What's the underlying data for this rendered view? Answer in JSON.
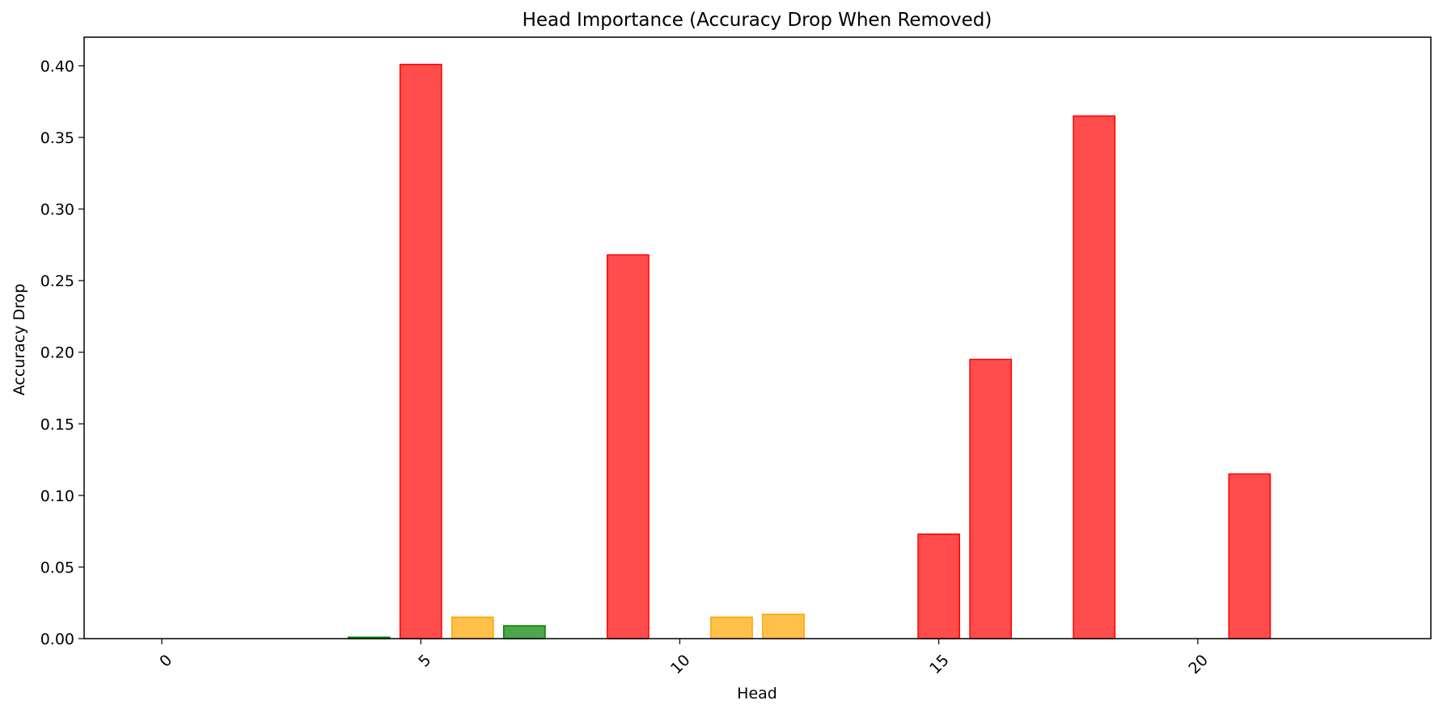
{
  "chart_data": {
    "type": "bar",
    "title": "Head Importance (Accuracy Drop When Removed)",
    "xlabel": "Head",
    "ylabel": "Accuracy Drop",
    "x": [
      0,
      1,
      2,
      3,
      4,
      5,
      6,
      7,
      8,
      9,
      10,
      11,
      12,
      13,
      14,
      15,
      16,
      17,
      18,
      19,
      20,
      21,
      22,
      23
    ],
    "values": [
      0.0,
      0.0,
      0.0,
      0.0,
      0.001,
      0.401,
      0.015,
      0.009,
      0.0,
      0.268,
      0.0,
      0.015,
      0.017,
      0.0,
      0.0,
      0.073,
      0.195,
      0.0,
      0.365,
      0.0,
      0.0,
      0.115,
      0.0,
      0.0
    ],
    "colors": [
      "#008000",
      "#008000",
      "#008000",
      "#008000",
      "#008000",
      "#ff0000",
      "#ffa500",
      "#008000",
      "#008000",
      "#ff0000",
      "#008000",
      "#ffa500",
      "#ffa500",
      "#008000",
      "#008000",
      "#ff0000",
      "#ff0000",
      "#008000",
      "#ff0000",
      "#008000",
      "#008000",
      "#ff0000",
      "#008000",
      "#008000"
    ],
    "xticks": [
      0,
      5,
      10,
      15,
      20
    ],
    "yticks": [
      "0.00",
      "0.05",
      "0.10",
      "0.15",
      "0.20",
      "0.25",
      "0.30",
      "0.35",
      "0.40"
    ],
    "xlim": [
      -1.5,
      24.5
    ],
    "ylim": [
      0,
      0.42
    ],
    "grid": false,
    "legend": "none"
  }
}
